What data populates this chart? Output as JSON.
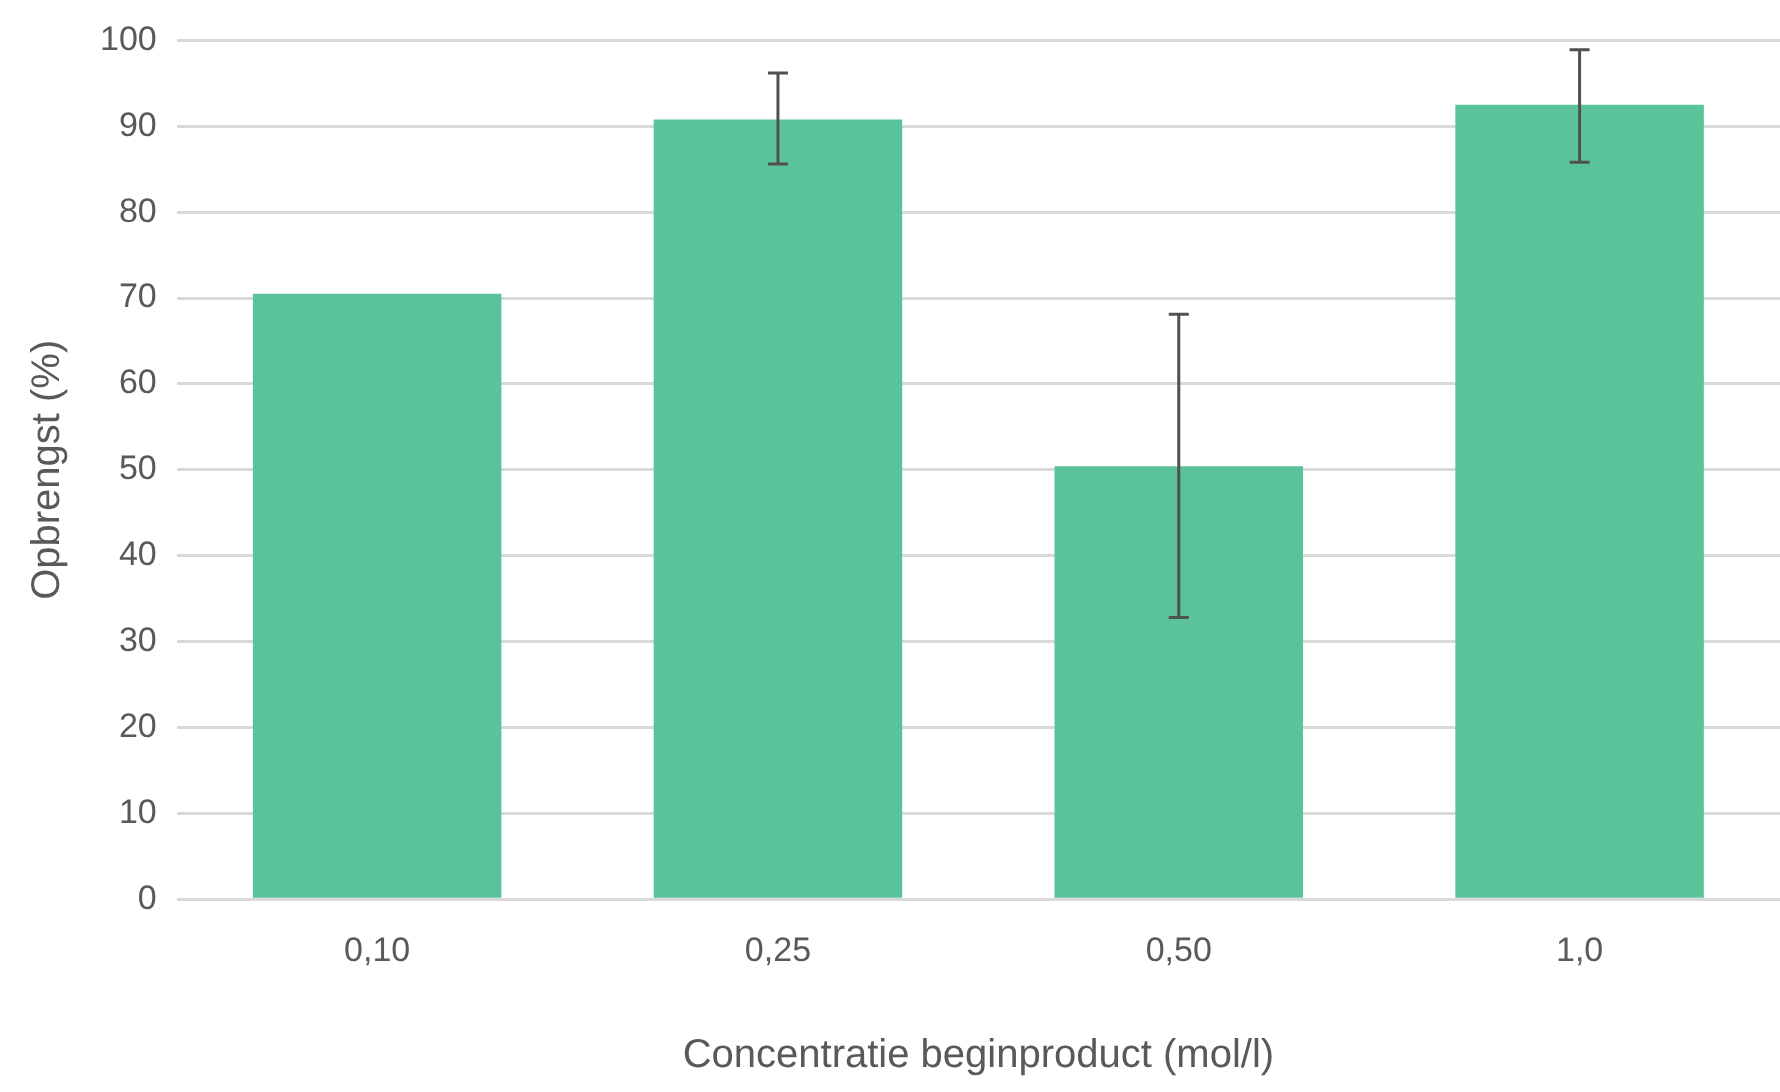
{
  "chart_data": {
    "type": "bar",
    "xlabel": "Concentratie beginproduct (mol/l)",
    "ylabel": "Opbrengst (%)",
    "categories": [
      "0,10",
      "0,25",
      "0,50",
      "1,0"
    ],
    "values": [
      70.5,
      90.8,
      50.4,
      92.5
    ],
    "errors": [
      null,
      [
        85.6,
        96.2
      ],
      [
        32.8,
        68.1
      ],
      [
        85.8,
        98.9
      ]
    ],
    "color": "#5bc39a",
    "ylim": [
      0,
      100
    ],
    "yticks": [
      0,
      10,
      20,
      30,
      40,
      50,
      60,
      70,
      80,
      90,
      100
    ],
    "grid": "y",
    "legend": false
  }
}
